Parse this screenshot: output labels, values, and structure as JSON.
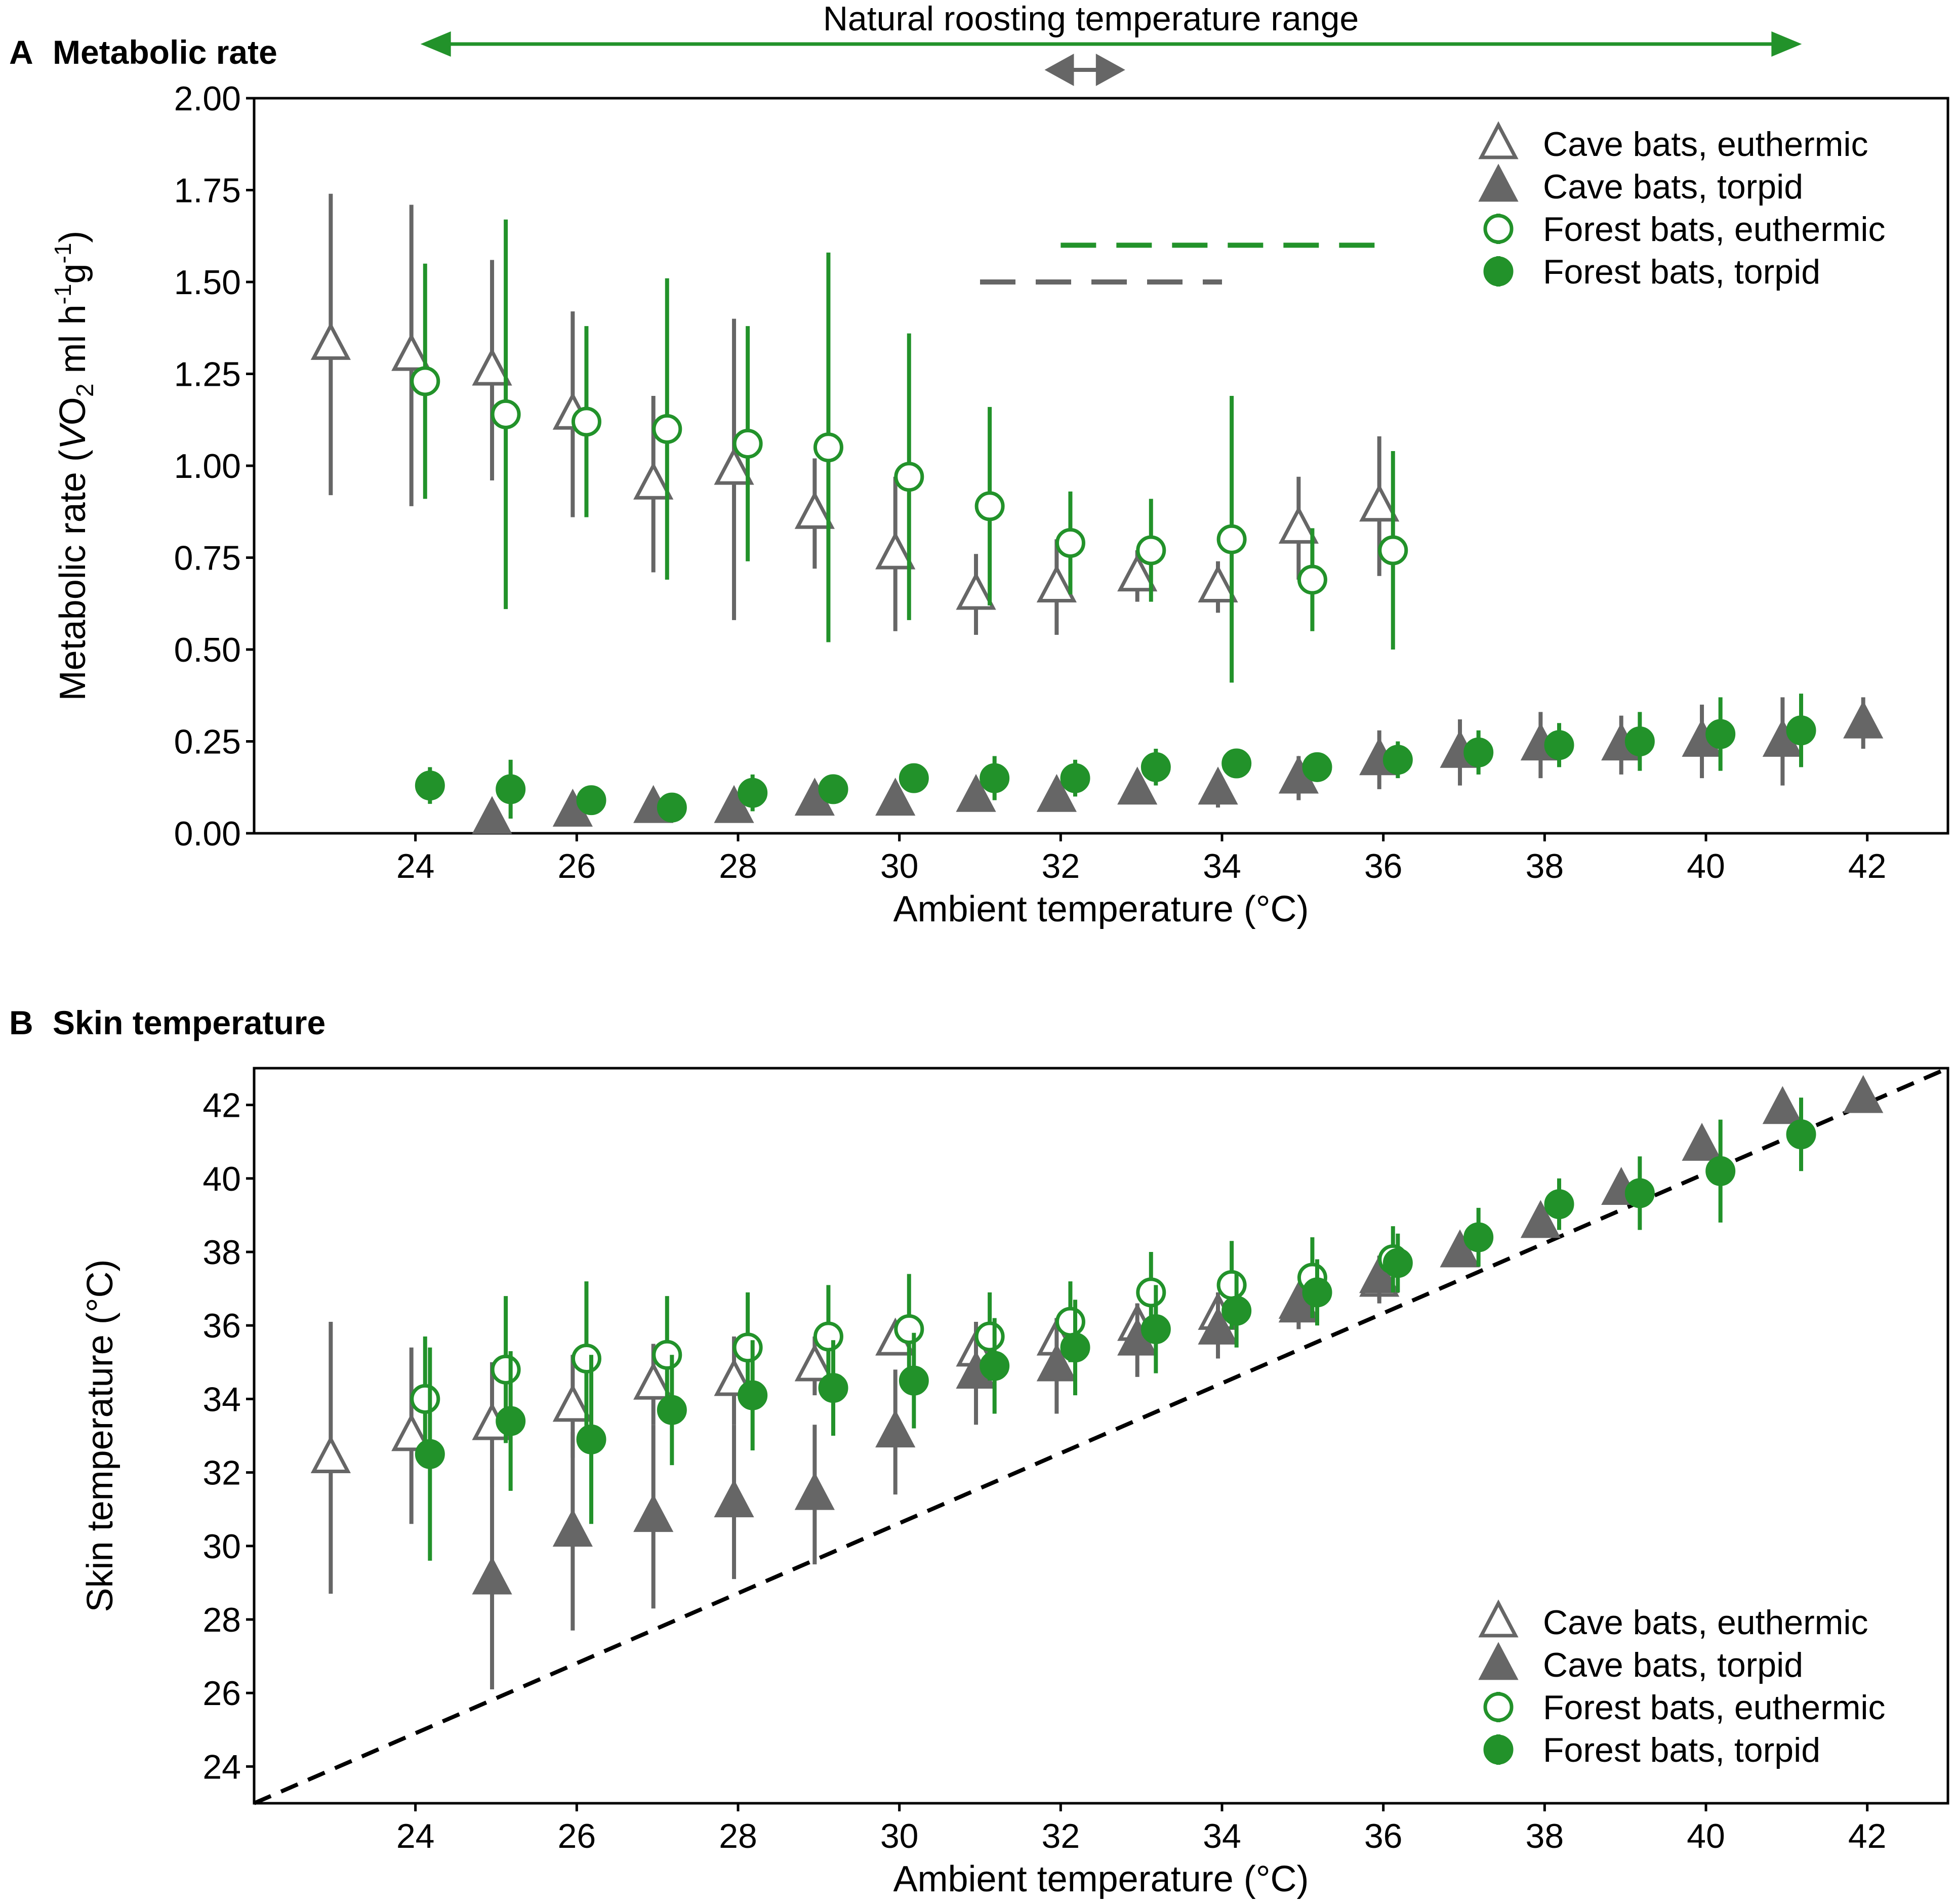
{
  "colors": {
    "cave": "#666666",
    "forest": "#22922a",
    "identity": "#000000"
  },
  "range_annotation": {
    "label": "Natural roosting temperature range",
    "green_range": [
      24,
      41
    ],
    "gray_range": [
      31.8,
      32.8
    ]
  },
  "chart_data": [
    {
      "type": "scatter",
      "panel_letter": "A",
      "title": "Metabolic rate",
      "xlabel": "Ambient temperature (°C)",
      "ylabel": {
        "prefix": "Metabolic rate (",
        "v": "V",
        "sym": "O",
        "sub": "2",
        "unit1": " ml h",
        "e1": "-1",
        "unit2": "g",
        "e2": "-1",
        "close": ")"
      },
      "xlim": [
        22,
        43
      ],
      "ylim": [
        0,
        2
      ],
      "xticks": [
        "24",
        "26",
        "28",
        "30",
        "32",
        "34",
        "36",
        "38",
        "40",
        "42"
      ],
      "yticks": [
        "0.00",
        "0.25",
        "0.50",
        "0.75",
        "1.00",
        "1.25",
        "1.50",
        "1.75",
        "2.00"
      ],
      "legend": [
        "Cave bats, euthermic",
        "Cave bats, torpid",
        "Forest bats, euthermic",
        "Forest bats, torpid"
      ],
      "dashed_lines": [
        {
          "series": "Forest",
          "y": 1.6,
          "x": [
            32,
            36
          ]
        },
        {
          "series": "Cave",
          "y": 1.5,
          "x": [
            31,
            34
          ]
        }
      ],
      "series": [
        {
          "name": "Cave bats, euthermic",
          "marker": "open-triangle",
          "color": "cave",
          "x": [
            23,
            24,
            25,
            26,
            27,
            28,
            29,
            30,
            31,
            32,
            33,
            34,
            35,
            36
          ],
          "y": [
            1.33,
            1.3,
            1.26,
            1.14,
            0.95,
            0.99,
            0.87,
            0.76,
            0.65,
            0.67,
            0.7,
            0.67,
            0.83,
            0.89
          ],
          "err": [
            0.41,
            0.41,
            0.3,
            0.28,
            0.24,
            0.41,
            0.15,
            0.21,
            0.11,
            0.13,
            0.07,
            0.07,
            0.14,
            0.19
          ]
        },
        {
          "name": "Cave bats, torpid",
          "marker": "filled-triangle",
          "color": "cave",
          "x": [
            25,
            26,
            27,
            28,
            29,
            30,
            31,
            32,
            33,
            34,
            35,
            36,
            37,
            38,
            39,
            40,
            41,
            42
          ],
          "y": [
            0.04,
            0.06,
            0.07,
            0.07,
            0.09,
            0.09,
            0.1,
            0.1,
            0.12,
            0.12,
            0.15,
            0.2,
            0.22,
            0.24,
            0.24,
            0.25,
            0.25,
            0.3
          ],
          "err": [
            0.01,
            0.02,
            0.02,
            0.02,
            0.03,
            0.02,
            0.02,
            0.03,
            0.04,
            0.05,
            0.06,
            0.08,
            0.09,
            0.09,
            0.08,
            0.1,
            0.12,
            0.07
          ]
        },
        {
          "name": "Forest bats, euthermic",
          "marker": "open-circle",
          "color": "forest",
          "x": [
            24,
            25,
            26,
            27,
            28,
            29,
            30,
            31,
            32,
            33,
            34,
            35,
            36
          ],
          "y": [
            1.23,
            1.14,
            1.12,
            1.1,
            1.06,
            1.05,
            0.97,
            0.89,
            0.79,
            0.77,
            0.8,
            0.69,
            0.77
          ],
          "err": [
            0.32,
            0.53,
            0.26,
            0.41,
            0.32,
            0.53,
            0.39,
            0.27,
            0.14,
            0.14,
            0.39,
            0.14,
            0.27
          ]
        },
        {
          "name": "Forest bats, torpid",
          "marker": "filled-circle",
          "color": "forest",
          "x": [
            24,
            25,
            26,
            27,
            28,
            29,
            30,
            31,
            32,
            33,
            34,
            35,
            36,
            37,
            38,
            39,
            40,
            41
          ],
          "y": [
            0.13,
            0.12,
            0.09,
            0.07,
            0.11,
            0.12,
            0.15,
            0.15,
            0.15,
            0.18,
            0.19,
            0.18,
            0.2,
            0.22,
            0.24,
            0.25,
            0.27,
            0.28
          ],
          "err": [
            0.05,
            0.08,
            0.04,
            0.02,
            0.05,
            0.02,
            0.02,
            0.06,
            0.05,
            0.05,
            0.04,
            0.03,
            0.05,
            0.06,
            0.06,
            0.08,
            0.1,
            0.1
          ]
        }
      ]
    },
    {
      "type": "scatter",
      "panel_letter": "B",
      "title": "Skin temperature",
      "xlabel": "Ambient temperature (°C)",
      "ylabel": "Skin temperature (°C)",
      "xlim": [
        22,
        43
      ],
      "ylim": [
        23,
        43
      ],
      "xticks": [
        "24",
        "26",
        "28",
        "30",
        "32",
        "34",
        "36",
        "38",
        "40",
        "42"
      ],
      "yticks": [
        "24",
        "26",
        "28",
        "30",
        "32",
        "34",
        "36",
        "38",
        "40",
        "42"
      ],
      "legend": [
        "Cave bats, euthermic",
        "Cave bats, torpid",
        "Forest bats, euthermic",
        "Forest bats, torpid"
      ],
      "identity_line": {
        "x": [
          22,
          43
        ],
        "y": [
          23,
          43
        ]
      },
      "series": [
        {
          "name": "Cave bats, euthermic",
          "marker": "open-triangle",
          "color": "cave",
          "x": [
            23,
            24,
            25,
            26,
            27,
            28,
            29,
            30,
            31,
            32,
            33,
            34,
            35,
            36
          ],
          "y": [
            32.4,
            33.0,
            33.3,
            33.8,
            34.4,
            34.5,
            34.9,
            35.6,
            35.3,
            35.6,
            36.0,
            36.3,
            36.6,
            37.2
          ],
          "err": [
            3.7,
            2.4,
            1.7,
            1.4,
            1.1,
            1.2,
            0.8,
            0.4,
            0.6,
            0.6,
            0.6,
            0.6,
            0.4,
            0.6
          ]
        },
        {
          "name": "Cave bats, torpid",
          "marker": "filled-triangle",
          "color": "cave",
          "x": [
            25,
            26,
            27,
            28,
            29,
            30,
            31,
            32,
            33,
            34,
            35,
            36,
            37,
            38,
            39,
            40,
            41,
            42
          ],
          "y": [
            29.1,
            30.4,
            30.8,
            31.2,
            31.4,
            33.1,
            34.7,
            34.9,
            35.6,
            35.9,
            36.5,
            37.3,
            38.0,
            38.8,
            39.7,
            40.9,
            41.9,
            42.2
          ],
          "err": [
            3.0,
            2.7,
            2.5,
            2.1,
            1.9,
            1.7,
            1.4,
            1.3,
            1.0,
            0.8,
            0.6,
            0.6,
            0.4,
            0.3,
            0.3,
            0.3,
            0.2,
            0.1
          ]
        },
        {
          "name": "Forest bats, euthermic",
          "marker": "open-circle",
          "color": "forest",
          "x": [
            24,
            25,
            26,
            27,
            28,
            29,
            30,
            31,
            32,
            33,
            34,
            35,
            36
          ],
          "y": [
            34.0,
            34.8,
            35.1,
            35.2,
            35.4,
            35.7,
            35.9,
            35.7,
            36.1,
            36.9,
            37.1,
            37.3,
            37.8
          ],
          "err": [
            1.7,
            2.0,
            2.1,
            1.6,
            1.5,
            1.4,
            1.5,
            1.2,
            1.1,
            1.1,
            1.2,
            1.1,
            0.9
          ]
        },
        {
          "name": "Forest bats, torpid",
          "marker": "filled-circle",
          "color": "forest",
          "x": [
            24,
            25,
            26,
            27,
            28,
            29,
            30,
            31,
            32,
            33,
            34,
            35,
            36,
            37,
            38,
            39,
            40,
            41
          ],
          "y": [
            32.5,
            33.4,
            32.9,
            33.7,
            34.1,
            34.3,
            34.5,
            34.9,
            35.4,
            35.9,
            36.4,
            36.9,
            37.7,
            38.4,
            39.3,
            39.6,
            40.2,
            41.2
          ],
          "err": [
            2.9,
            1.9,
            2.3,
            1.5,
            1.5,
            1.3,
            1.3,
            1.3,
            1.3,
            1.2,
            1.0,
            0.9,
            0.8,
            0.8,
            0.7,
            1.0,
            1.4,
            1.0
          ]
        }
      ]
    }
  ]
}
